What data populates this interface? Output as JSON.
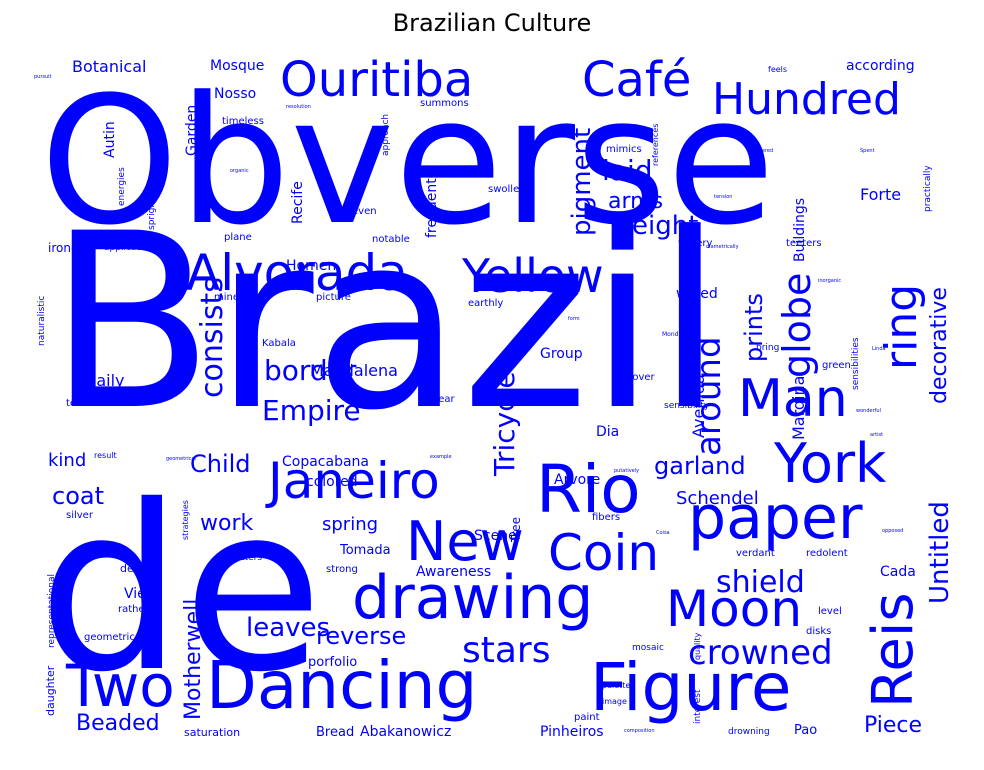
{
  "title": "Brazilian Culture",
  "color": "#0000ff",
  "words": [
    "Obverse",
    "Brazil",
    "de",
    "Ouritiba",
    "Café",
    "Hundred",
    "Alvorada",
    "Yellow",
    "Man",
    "ring",
    "Janeiro",
    "Rio",
    "York",
    "paper",
    "New",
    "Coin",
    "drawing",
    "Moon",
    "Reis",
    "Two",
    "Dancing",
    "Figure",
    "crowned",
    "stars",
    "shield",
    "Untitled",
    "around",
    "globe",
    "Tricycle",
    "pigment",
    "laid",
    "arms",
    "eight",
    "prints",
    "decorative",
    "consists",
    "border",
    "Empire",
    "Marginal",
    "Avenida",
    "leaves",
    "reverse",
    "Motherwell",
    "Piece",
    "Beaded",
    "coat",
    "garland",
    "Schendel",
    "work",
    "Child",
    "kind",
    "spring",
    "Magdalena",
    "Copacabana",
    "Edge",
    "Daily",
    "Botanical",
    "Mosque",
    "Nosso",
    "Garden",
    "Recife",
    "Autin",
    "Homen",
    "Buildings",
    "Forte",
    "frequently",
    "according",
    "Group",
    "Dia",
    "Arvore",
    "colored",
    "Tree",
    "Scene",
    "Awareness",
    "Tomada",
    "View",
    "Cada",
    "wiped",
    "globe2",
    "Bread",
    "Abakanowicz",
    "Pinheiros",
    "Pao",
    "porfolio",
    "design",
    "rather",
    "geometric",
    "saturation",
    "daughter",
    "representational",
    "tesserae",
    "naturalistic",
    "ironed",
    "applications",
    "sprightliness",
    "energies",
    "plane",
    "timeless",
    "mineral",
    "picture",
    "notable",
    "earthly",
    "even",
    "swollen",
    "approach",
    "summons",
    "mimics",
    "references",
    "watery",
    "teeters",
    "feels",
    "practically",
    "Kabala",
    "Mondrian",
    "bring",
    "green",
    "sensibility",
    "sensibilities",
    "fibers",
    "hover",
    "clear",
    "totters",
    "strong",
    "verdant",
    "redolent",
    "level",
    "disks",
    "quality",
    "mosaic",
    "interest",
    "palette",
    "image",
    "paint",
    "drowning",
    "fleeting",
    "silver",
    "strategies",
    "result",
    "kind2",
    "example",
    "organic",
    "pursuit",
    "resolution",
    "pioneered",
    "Spent",
    "aware",
    "tension",
    "inorganic",
    "wonderful",
    "artist",
    "Linda",
    "form",
    "diametrically",
    "opposed",
    "putatively",
    "Coisa",
    "composition",
    "geometrical",
    "fallen"
  ]
}
